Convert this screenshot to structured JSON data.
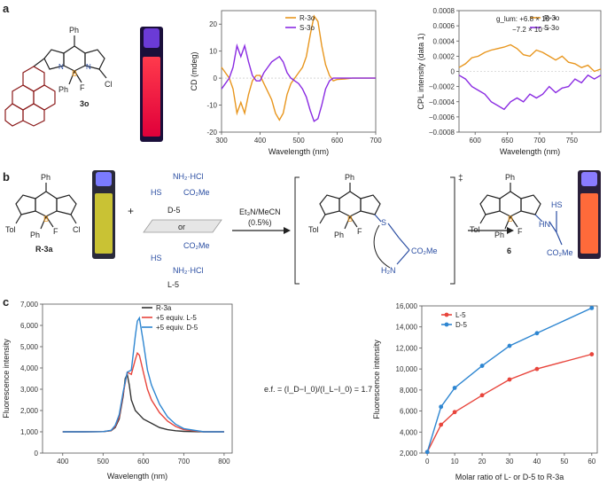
{
  "colors": {
    "orange": "#E8961E",
    "purple": "#8A2BE2",
    "black": "#333333",
    "red": "#E8453C",
    "blue": "#2E86D1",
    "boron": "#E8961E",
    "nitrogen": "#2B4EA2",
    "pyrene": "#8B1A1A",
    "axis": "#555555"
  },
  "panels": {
    "a": "a",
    "b": "b",
    "c": "c"
  },
  "panel_a": {
    "compound_label": "3o",
    "ph_label": "Ph",
    "f_label": "F",
    "cl_label": "Cl",
    "b_label": "B",
    "n_label": "N"
  },
  "panel_b": {
    "compound_label": "R-3a",
    "tol_label": "Tol",
    "ph_label": "Ph",
    "f_label": "F",
    "cl_label": "Cl",
    "plus": "+",
    "hs_label": "HS",
    "nh2hcl_label": "NH₂·HCl",
    "co2me_label": "CO₂Me",
    "d5_label": "D-5",
    "or_label": "or",
    "l5_label": "L-5",
    "reagent_line1": "Et₃N/MeCN",
    "reagent_line2": "(0.5%)",
    "ts_mark": "‡",
    "s_label": "S",
    "h2n_label": "H₂N",
    "product_label": "6",
    "hn_label": "HN",
    "hs_label2": "HS",
    "co2me_label2": "CO₂Me"
  },
  "ef_text": "e.f. = (I_D−I_0)/(I_L−I_0) = 1.7",
  "chart_data": [
    {
      "type": "line",
      "id": "cd",
      "title": "",
      "xlabel": "Wavelength (nm)",
      "ylabel": "CD (mdeg)",
      "xlim": [
        300,
        700
      ],
      "ylim": [
        -20,
        25
      ],
      "xticks": [
        300,
        400,
        500,
        600,
        700
      ],
      "yticks": [
        -20,
        -10,
        0,
        10,
        20
      ],
      "legend": [
        "R-3o",
        "S-3o"
      ],
      "series": [
        {
          "name": "R-3o",
          "color": "orange",
          "x": [
            300,
            310,
            320,
            330,
            340,
            350,
            360,
            370,
            380,
            390,
            400,
            410,
            420,
            430,
            440,
            450,
            460,
            470,
            480,
            490,
            500,
            510,
            520,
            530,
            540,
            550,
            560,
            570,
            580,
            590,
            600,
            620,
            640,
            660,
            680,
            700
          ],
          "y": [
            4,
            2,
            0,
            -4,
            -13,
            -9,
            -13,
            -6,
            -1,
            1,
            1,
            -2,
            -5,
            -8,
            -13,
            -15.5,
            -13,
            -6,
            -2,
            0,
            2,
            4,
            8,
            16,
            23,
            21,
            12,
            5,
            1,
            -1,
            -0.5,
            -0.3,
            0,
            0,
            0,
            0
          ]
        },
        {
          "name": "S-3o",
          "color": "purple",
          "x": [
            300,
            310,
            320,
            330,
            340,
            350,
            360,
            370,
            380,
            390,
            400,
            410,
            420,
            430,
            440,
            450,
            460,
            470,
            480,
            490,
            500,
            510,
            520,
            530,
            540,
            550,
            560,
            570,
            580,
            590,
            600,
            620,
            640,
            660,
            680,
            700
          ],
          "y": [
            -4,
            -2,
            0,
            4,
            12,
            8,
            12,
            6,
            1,
            -1,
            -1,
            2,
            4,
            6,
            7,
            8,
            6,
            2,
            0,
            -1,
            -2,
            -4,
            -7,
            -12,
            -16,
            -15,
            -10,
            -4,
            -1,
            0,
            0,
            0,
            0,
            0,
            0,
            0
          ]
        }
      ]
    },
    {
      "type": "line",
      "id": "cpl",
      "xlabel": "Wavelength (nm)",
      "ylabel": "CPL intensity (data 1)",
      "xlim": [
        575,
        795
      ],
      "ylim": [
        -0.0008,
        0.0008
      ],
      "xticks": [
        600,
        650,
        700,
        750
      ],
      "yticks": [
        -0.0008,
        -0.0006,
        -0.0004,
        -0.0002,
        0,
        0.0002,
        0.0004,
        0.0006,
        0.0008
      ],
      "ytick_labels": [
        "−0.0008",
        "−0.0006",
        "−0.0004",
        "−0.0002",
        "0",
        "0.0002",
        "0.0004",
        "0.0006",
        "0.0008"
      ],
      "annotation": "g_lum: +6.8 × 10⁻⁴",
      "annotation2": "−7.2 × 10⁻⁴",
      "legend": [
        "R-3o",
        "S-3o"
      ],
      "series": [
        {
          "name": "R-3o",
          "color": "orange",
          "x": [
            575,
            585,
            595,
            605,
            615,
            625,
            635,
            645,
            655,
            665,
            675,
            685,
            695,
            705,
            715,
            725,
            735,
            745,
            755,
            765,
            775,
            785,
            795
          ],
          "y": [
            5e-05,
            0.0001,
            0.00018,
            0.0002,
            0.00025,
            0.00028,
            0.0003,
            0.00032,
            0.00035,
            0.0003,
            0.00022,
            0.0002,
            0.00028,
            0.00025,
            0.0002,
            0.00015,
            0.0002,
            0.00012,
            0.0001,
            5e-05,
            8e-05,
            0.0,
            3e-05
          ]
        },
        {
          "name": "S-3o",
          "color": "purple",
          "x": [
            575,
            585,
            595,
            605,
            615,
            625,
            635,
            645,
            655,
            665,
            675,
            685,
            695,
            705,
            715,
            725,
            735,
            745,
            755,
            765,
            775,
            785,
            795
          ],
          "y": [
            -5e-05,
            -0.0001,
            -0.0002,
            -0.00025,
            -0.0003,
            -0.0004,
            -0.00045,
            -0.0005,
            -0.0004,
            -0.00035,
            -0.0004,
            -0.0003,
            -0.00035,
            -0.0003,
            -0.0002,
            -0.00028,
            -0.00022,
            -0.0002,
            -0.0001,
            -0.00015,
            -5e-05,
            -0.0001,
            -5e-05
          ]
        }
      ]
    },
    {
      "type": "line",
      "id": "fluor",
      "xlabel": "Wavelength (nm)",
      "ylabel": "Fluorescence intensity",
      "xlim": [
        350,
        820
      ],
      "ylim": [
        0,
        7000
      ],
      "xticks": [
        400,
        500,
        600,
        700,
        800
      ],
      "yticks": [
        0,
        1000,
        2000,
        3000,
        4000,
        5000,
        6000,
        7000
      ],
      "ytick_labels": [
        "0",
        "1,000",
        "2,000",
        "3,000",
        "4,000",
        "5,000",
        "6,000",
        "7,000"
      ],
      "legend": [
        "R-3a",
        "+5 equiv. L-5",
        "+5 equiv. D-5"
      ],
      "series": [
        {
          "name": "R-3a",
          "color": "black",
          "x": [
            400,
            450,
            500,
            520,
            530,
            540,
            550,
            555,
            560,
            565,
            570,
            580,
            590,
            600,
            620,
            640,
            660,
            680,
            700,
            750,
            800
          ],
          "y": [
            1000,
            1000,
            1010,
            1050,
            1200,
            1600,
            2700,
            3500,
            3700,
            3200,
            2500,
            2000,
            1800,
            1600,
            1400,
            1200,
            1100,
            1050,
            1020,
            1000,
            1000
          ]
        },
        {
          "name": "+5 equiv. L-5",
          "color": "red",
          "x": [
            400,
            450,
            500,
            520,
            530,
            540,
            550,
            560,
            570,
            580,
            585,
            590,
            600,
            610,
            620,
            640,
            660,
            680,
            700,
            750,
            800
          ],
          "y": [
            1000,
            1000,
            1010,
            1060,
            1250,
            1700,
            2800,
            3800,
            3700,
            4400,
            4700,
            4600,
            3800,
            3000,
            2500,
            1900,
            1500,
            1250,
            1100,
            1000,
            1000
          ]
        },
        {
          "name": "+5 equiv. D-5",
          "color": "blue",
          "x": [
            400,
            450,
            500,
            520,
            530,
            540,
            550,
            560,
            570,
            580,
            585,
            590,
            600,
            610,
            620,
            640,
            660,
            680,
            700,
            750,
            800
          ],
          "y": [
            1000,
            1000,
            1010,
            1070,
            1300,
            1800,
            2900,
            3800,
            3900,
            5500,
            6200,
            6350,
            5200,
            3900,
            3200,
            2300,
            1700,
            1350,
            1150,
            1000,
            1000
          ]
        }
      ]
    },
    {
      "type": "line",
      "id": "molar",
      "xlabel": "Molar ratio of L- or D-5 to R-3a",
      "ylabel": "Fluorescence intensity",
      "xlim": [
        -2,
        62
      ],
      "ylim": [
        2000,
        16000
      ],
      "xticks": [
        0,
        10,
        20,
        30,
        40,
        50,
        60
      ],
      "yticks": [
        2000,
        4000,
        6000,
        8000,
        10000,
        12000,
        14000,
        16000
      ],
      "ytick_labels": [
        "2,000",
        "4,000",
        "6,000",
        "8,000",
        "10,000",
        "12,000",
        "14,000",
        "16,000"
      ],
      "legend": [
        "L-5",
        "D-5"
      ],
      "series": [
        {
          "name": "L-5",
          "color": "red",
          "x": [
            0,
            5,
            10,
            20,
            30,
            40,
            60
          ],
          "y": [
            2100,
            4700,
            5900,
            7500,
            9000,
            10000,
            11400
          ]
        },
        {
          "name": "D-5",
          "color": "blue",
          "x": [
            0,
            5,
            10,
            20,
            30,
            40,
            60
          ],
          "y": [
            2100,
            6400,
            8200,
            10300,
            12200,
            13400,
            15800
          ]
        }
      ]
    }
  ]
}
